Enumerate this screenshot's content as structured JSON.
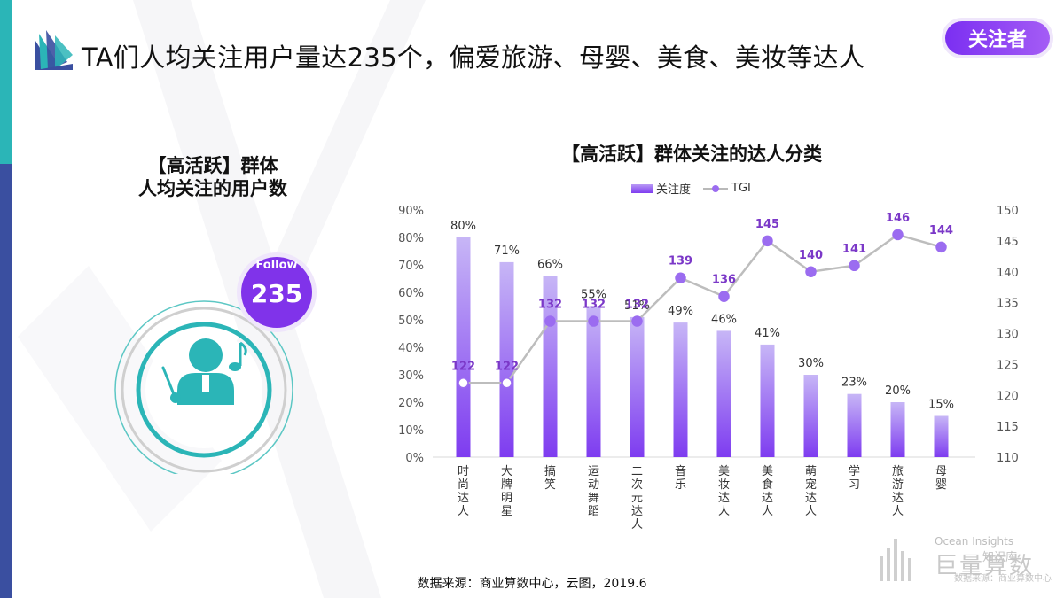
{
  "header": {
    "title": "TA们人均关注用户量达235个，偏爱旅游、母婴、美食、美妆等达人",
    "tag": "关注者"
  },
  "left_panel": {
    "title_line1": "【高活跃】群体",
    "title_line2": "人均关注的用户数",
    "follow_label": "Follow",
    "follow_value": "235",
    "icons": [
      "user-conductor-icon",
      "music-note-icon",
      "baton-icon"
    ]
  },
  "footer": {
    "source": "数据来源：商业算数中心，云图，2019.6",
    "brand_line1": "Ocean Insights",
    "brand_line2": "巨量算数",
    "brand_wechat": "知识库",
    "brand_site": "数据来源：商业算数中心"
  },
  "colors": {
    "bar_top": "#c7b6f6",
    "bar_bottom": "#7e3cf0",
    "line": "#bdbdbd",
    "marker": "#9b6cf0",
    "tgi_label": "#7b38c8",
    "teal": "#2bb5b7",
    "navy": "#3a4fa0"
  },
  "chart_data": {
    "type": "bar",
    "title": "【高活跃】群体关注的达人分类",
    "categories": [
      "时尚达人",
      "大牌明星",
      "搞笑",
      "运动舞蹈",
      "二次元达人",
      "音乐",
      "美妆达人",
      "美食达人",
      "萌宠达人",
      "学习",
      "旅游达人",
      "母婴"
    ],
    "series": [
      {
        "name": "关注度",
        "type": "bar",
        "axis": "left",
        "values": [
          80,
          71,
          66,
          55,
          51,
          49,
          46,
          41,
          30,
          23,
          20,
          15
        ],
        "labels": [
          "80%",
          "71%",
          "66%",
          "55%",
          "51%",
          "49%",
          "46%",
          "41%",
          "30%",
          "23%",
          "20%",
          "15%"
        ]
      },
      {
        "name": "TGI",
        "type": "line",
        "axis": "right",
        "values": [
          122,
          122,
          132,
          132,
          132,
          139,
          136,
          145,
          140,
          141,
          146,
          144
        ],
        "labels": [
          "122",
          "122",
          "132",
          "132",
          "132",
          "139",
          "136",
          "145",
          "140",
          "141",
          "146",
          "144"
        ]
      }
    ],
    "y_left": {
      "min": 0,
      "max": 90,
      "step": 10,
      "ticks": [
        "0%",
        "10%",
        "20%",
        "30%",
        "40%",
        "50%",
        "60%",
        "70%",
        "80%",
        "90%"
      ]
    },
    "y_right": {
      "min": 110,
      "max": 150,
      "step": 5,
      "ticks": [
        "110",
        "115",
        "120",
        "125",
        "130",
        "135",
        "140",
        "145",
        "150"
      ]
    },
    "grid": false,
    "legend_position": "top-center"
  }
}
